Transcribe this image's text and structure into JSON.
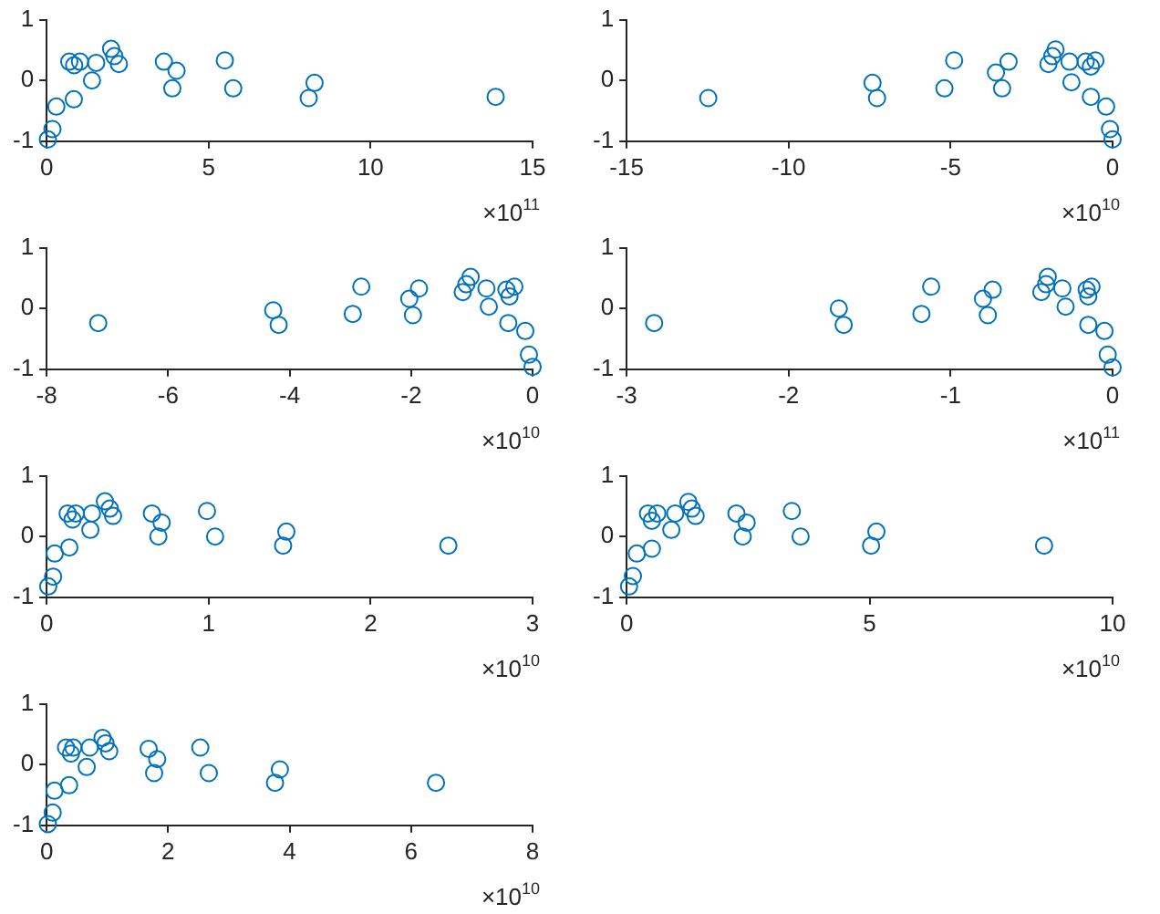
{
  "chart_data": [
    {
      "type": "scatter",
      "marker": "circle",
      "grid": false,
      "legend": false,
      "annotations": [
        "×10$^{11}$"
      ],
      "xlim": [
        0,
        15
      ],
      "xticks": [
        0,
        5,
        10,
        15
      ],
      "ylim": [
        -1,
        1
      ],
      "yticks": [
        -1,
        0,
        1
      ],
      "series": [
        {
          "color": "#0072bd",
          "x": [
            0.04,
            0.18,
            0.3,
            0.7,
            0.85,
            0.84,
            1.03,
            1.4,
            1.53,
            1.99,
            2.09,
            2.23,
            3.62,
            4.01,
            3.88,
            5.5,
            5.76,
            8.27,
            8.09,
            13.86
          ],
          "values": [
            -0.97,
            -0.8,
            -0.43,
            0.31,
            0.25,
            -0.31,
            0.31,
            0,
            0.29,
            0.52,
            0.4,
            0.27,
            0.31,
            0.16,
            -0.13,
            0.33,
            -0.13,
            -0.04,
            -0.29,
            -0.27
          ]
        }
      ]
    },
    {
      "type": "scatter",
      "marker": "circle",
      "grid": false,
      "legend": false,
      "annotations": [
        "×10$^{10}$"
      ],
      "xlim": [
        -15,
        0
      ],
      "xticks": [
        -15,
        -10,
        -5,
        0
      ],
      "ylim": [
        -1,
        1
      ],
      "yticks": [
        -1,
        0,
        1
      ],
      "series": [
        {
          "color": "#0072bd",
          "x": [
            -12.48,
            -7.41,
            -7.27,
            -5.19,
            -4.89,
            -3.6,
            -3.41,
            -3.21,
            -1.98,
            -1.86,
            -1.76,
            -1.33,
            -1.27,
            -0.83,
            -0.67,
            -0.53,
            -0.67,
            -0.2,
            -0.08,
            0
          ],
          "values": [
            -0.29,
            -0.04,
            -0.29,
            -0.13,
            0.33,
            0.13,
            -0.13,
            0.31,
            0.27,
            0.4,
            0.51,
            0.31,
            -0.03,
            0.31,
            0.23,
            0.33,
            -0.27,
            -0.43,
            -0.8,
            -0.97
          ]
        }
      ]
    },
    {
      "type": "scatter",
      "marker": "circle",
      "grid": false,
      "legend": false,
      "annotations": [
        "×10$^{10}$"
      ],
      "xlim": [
        -8,
        0
      ],
      "xticks": [
        -8,
        -6,
        -4,
        -2,
        0
      ],
      "ylim": [
        -1,
        1
      ],
      "yticks": [
        -1,
        0,
        1
      ],
      "series": [
        {
          "color": "#0072bd",
          "x": [
            -7.15,
            -4.27,
            -4.18,
            -2.96,
            -2.82,
            -2.03,
            -1.97,
            -1.87,
            -1.15,
            -1.09,
            -1.02,
            -0.76,
            -0.72,
            -0.43,
            -0.38,
            -0.3,
            -0.4,
            -0.12,
            -0.06,
            0
          ],
          "values": [
            -0.24,
            -0.03,
            -0.27,
            -0.09,
            0.36,
            0.16,
            -0.11,
            0.33,
            0.27,
            0.4,
            0.52,
            0.33,
            0.03,
            0.31,
            0.2,
            0.36,
            -0.24,
            -0.37,
            -0.76,
            -0.96
          ]
        }
      ]
    },
    {
      "type": "scatter",
      "marker": "circle",
      "grid": false,
      "legend": false,
      "annotations": [
        "×10$^{11}$"
      ],
      "xlim": [
        -3,
        0
      ],
      "xticks": [
        -3,
        -2,
        -1,
        0
      ],
      "ylim": [
        -1,
        1
      ],
      "yticks": [
        -1,
        0,
        1
      ],
      "series": [
        {
          "color": "#0072bd",
          "x": [
            -2.83,
            -1.69,
            -1.66,
            -1.18,
            -1.12,
            -0.8,
            -0.77,
            -0.74,
            -0.44,
            -0.41,
            -0.4,
            -0.31,
            -0.29,
            -0.16,
            -0.15,
            -0.13,
            -0.15,
            -0.05,
            -0.03,
            0
          ],
          "values": [
            -0.24,
            0,
            -0.27,
            -0.09,
            0.36,
            0.16,
            -0.11,
            0.31,
            0.27,
            0.4,
            0.52,
            0.33,
            0.03,
            0.31,
            0.2,
            0.36,
            -0.27,
            -0.37,
            -0.76,
            -0.97
          ]
        }
      ]
    },
    {
      "type": "scatter",
      "marker": "circle",
      "grid": false,
      "legend": false,
      "annotations": [
        "×10$^{10}$"
      ],
      "xlim": [
        0,
        3
      ],
      "xticks": [
        0,
        1,
        2,
        3
      ],
      "ylim": [
        -1,
        1
      ],
      "yticks": [
        -1,
        0,
        1
      ],
      "series": [
        {
          "color": "#0072bd",
          "x": [
            0.01,
            0.04,
            0.05,
            0.13,
            0.16,
            0.18,
            0.14,
            0.27,
            0.28,
            0.36,
            0.39,
            0.41,
            0.65,
            0.71,
            0.69,
            0.99,
            1.04,
            1.46,
            1.48,
            2.48
          ],
          "values": [
            -0.82,
            -0.66,
            -0.28,
            0.38,
            0.28,
            0.38,
            -0.18,
            0.11,
            0.38,
            0.58,
            0.46,
            0.34,
            0.38,
            0.23,
            0,
            0.42,
            0,
            -0.15,
            0.08,
            -0.15
          ]
        }
      ]
    },
    {
      "type": "scatter",
      "marker": "circle",
      "grid": false,
      "legend": false,
      "annotations": [
        "×10$^{10}$"
      ],
      "xlim": [
        0,
        10
      ],
      "xticks": [
        0,
        5,
        10
      ],
      "ylim": [
        -1,
        1
      ],
      "yticks": [
        -1,
        0,
        1
      ],
      "series": [
        {
          "color": "#0072bd",
          "x": [
            0.05,
            0.13,
            0.21,
            0.44,
            0.52,
            0.63,
            0.52,
            0.92,
            1,
            1.27,
            1.34,
            1.42,
            2.26,
            2.47,
            2.39,
            3.4,
            3.58,
            5.03,
            5.14,
            8.59
          ],
          "values": [
            -0.82,
            -0.65,
            -0.28,
            0.38,
            0.26,
            0.38,
            -0.2,
            0.11,
            0.38,
            0.57,
            0.46,
            0.34,
            0.38,
            0.23,
            0,
            0.42,
            0,
            -0.15,
            0.08,
            -0.15
          ]
        }
      ]
    },
    {
      "type": "scatter",
      "marker": "circle",
      "grid": false,
      "legend": false,
      "annotations": [
        "×10$^{10}$"
      ],
      "xlim": [
        0,
        8
      ],
      "xticks": [
        0,
        2,
        4,
        6,
        8
      ],
      "ylim": [
        -1,
        1
      ],
      "yticks": [
        -1,
        0,
        1
      ],
      "series": [
        {
          "color": "#0072bd",
          "x": [
            0.02,
            0.1,
            0.13,
            0.32,
            0.4,
            0.44,
            0.37,
            0.66,
            0.71,
            0.92,
            0.97,
            1.03,
            1.68,
            1.82,
            1.77,
            2.53,
            2.67,
            3.76,
            3.84,
            6.41
          ],
          "values": [
            -0.98,
            -0.79,
            -0.43,
            0.28,
            0.18,
            0.28,
            -0.34,
            -0.04,
            0.28,
            0.44,
            0.35,
            0.22,
            0.26,
            0.09,
            -0.14,
            0.28,
            -0.14,
            -0.3,
            -0.08,
            -0.3
          ]
        }
      ]
    }
  ]
}
